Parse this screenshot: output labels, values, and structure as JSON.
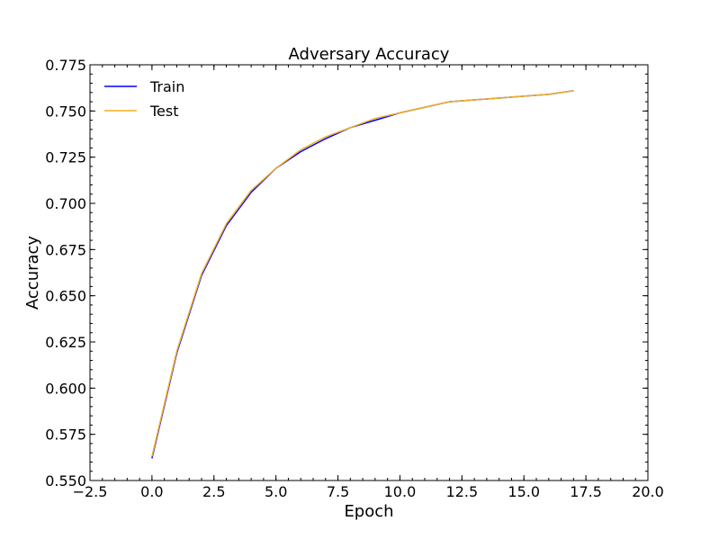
{
  "chart_data": {
    "type": "line",
    "title": "Adversary Accuracy",
    "xlabel": "Epoch",
    "ylabel": "Accuracy",
    "xlim": [
      -2.5,
      20.0
    ],
    "ylim": [
      0.55,
      0.775
    ],
    "x_ticks": [
      -2.5,
      0.0,
      2.5,
      5.0,
      7.5,
      10.0,
      12.5,
      15.0,
      17.5,
      20.0
    ],
    "x_tick_labels": [
      "−2.5",
      "0.0",
      "2.5",
      "5.0",
      "7.5",
      "10.0",
      "12.5",
      "15.0",
      "17.5",
      "20.0"
    ],
    "y_ticks": [
      0.55,
      0.575,
      0.6,
      0.625,
      0.65,
      0.675,
      0.7,
      0.725,
      0.75,
      0.775
    ],
    "y_tick_labels": [
      "0.550",
      "0.575",
      "0.600",
      "0.625",
      "0.650",
      "0.675",
      "0.700",
      "0.725",
      "0.750",
      "0.775"
    ],
    "grid": false,
    "legend_position": "top-left",
    "x": [
      0,
      1,
      2,
      3,
      4,
      5,
      6,
      7,
      8,
      9,
      10,
      11,
      12,
      13,
      14,
      15,
      16,
      17
    ],
    "series": [
      {
        "name": "Train",
        "color": "#0000ff",
        "values": [
          0.562,
          0.619,
          0.661,
          0.688,
          0.706,
          0.719,
          0.728,
          0.735,
          0.741,
          0.745,
          0.749,
          0.752,
          0.755,
          0.756,
          0.757,
          0.758,
          0.759,
          0.761
        ]
      },
      {
        "name": "Test",
        "color": "#f0b020",
        "values": [
          0.563,
          0.62,
          0.662,
          0.689,
          0.707,
          0.719,
          0.729,
          0.736,
          0.741,
          0.746,
          0.749,
          0.752,
          0.755,
          0.756,
          0.757,
          0.758,
          0.759,
          0.761
        ]
      }
    ]
  }
}
